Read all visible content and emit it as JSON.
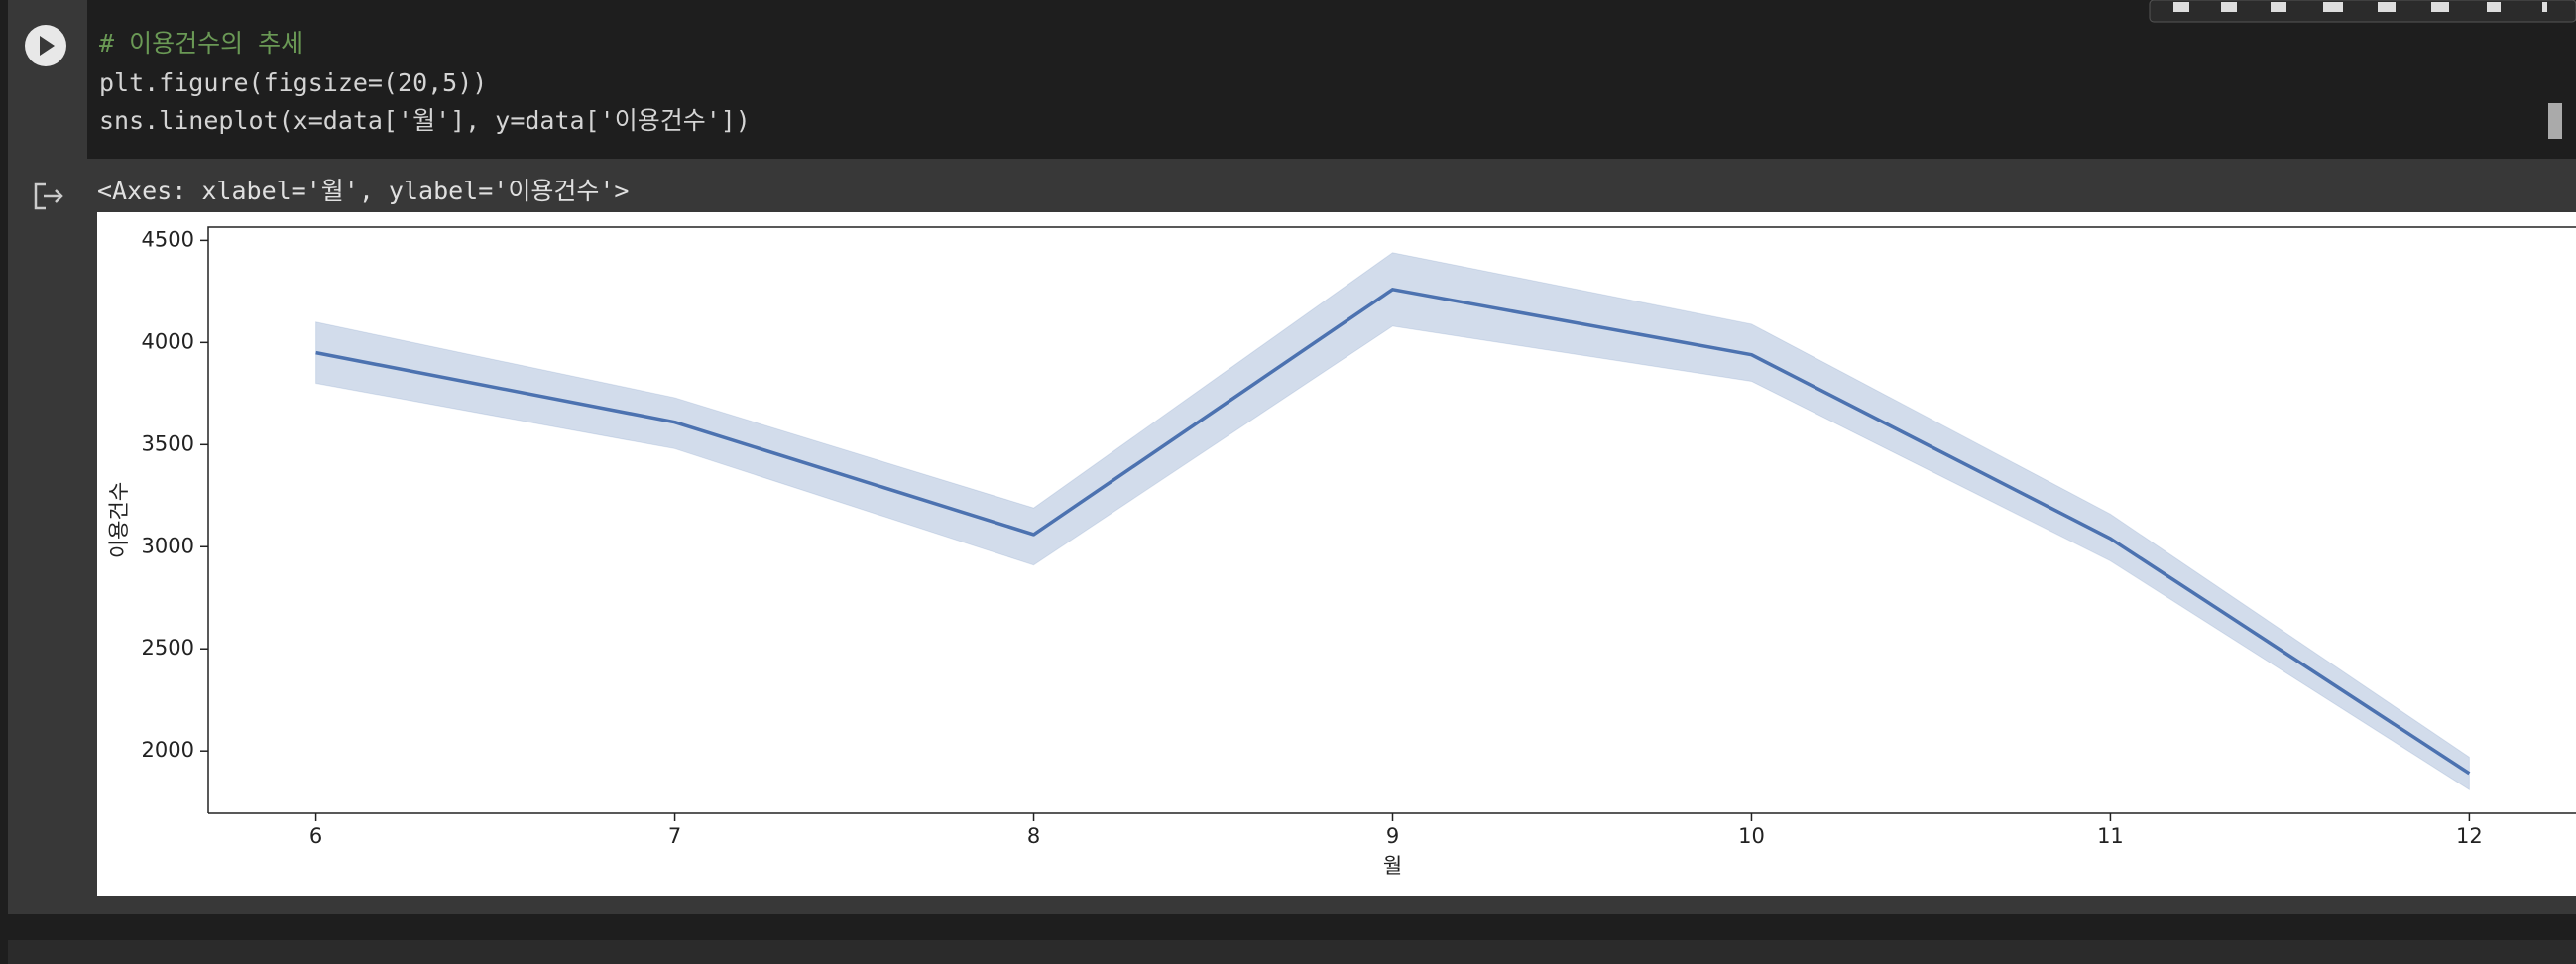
{
  "cell": {
    "code": [
      "# 이용건수의 추세",
      "plt.figure(figsize=(20,5))",
      "sns.lineplot(x=data['월'], y=data['이용건수'])"
    ]
  },
  "output": {
    "text": "<Axes: xlabel='월', ylabel='이용건수'>"
  },
  "chart_data": {
    "type": "line",
    "x_label": "월",
    "y_label": "이용건수",
    "x": [
      6,
      7,
      8,
      9,
      10,
      11,
      12
    ],
    "series": [
      {
        "color": "#4c72b0",
        "values": [
          3950,
          3610,
          3060,
          4260,
          3940,
          3040,
          1890
        ],
        "lower": [
          3800,
          3480,
          2910,
          4080,
          3810,
          2930,
          1810
        ],
        "upper": [
          4100,
          3730,
          3190,
          4440,
          4090,
          3160,
          1970
        ]
      }
    ],
    "xlim": [
      5.7,
      12.3
    ],
    "ylim": [
      1695,
      4565
    ],
    "xticks": [
      6,
      7,
      8,
      9,
      10,
      11,
      12
    ],
    "yticks": [
      2000,
      2500,
      3000,
      3500,
      4000,
      4500
    ]
  }
}
